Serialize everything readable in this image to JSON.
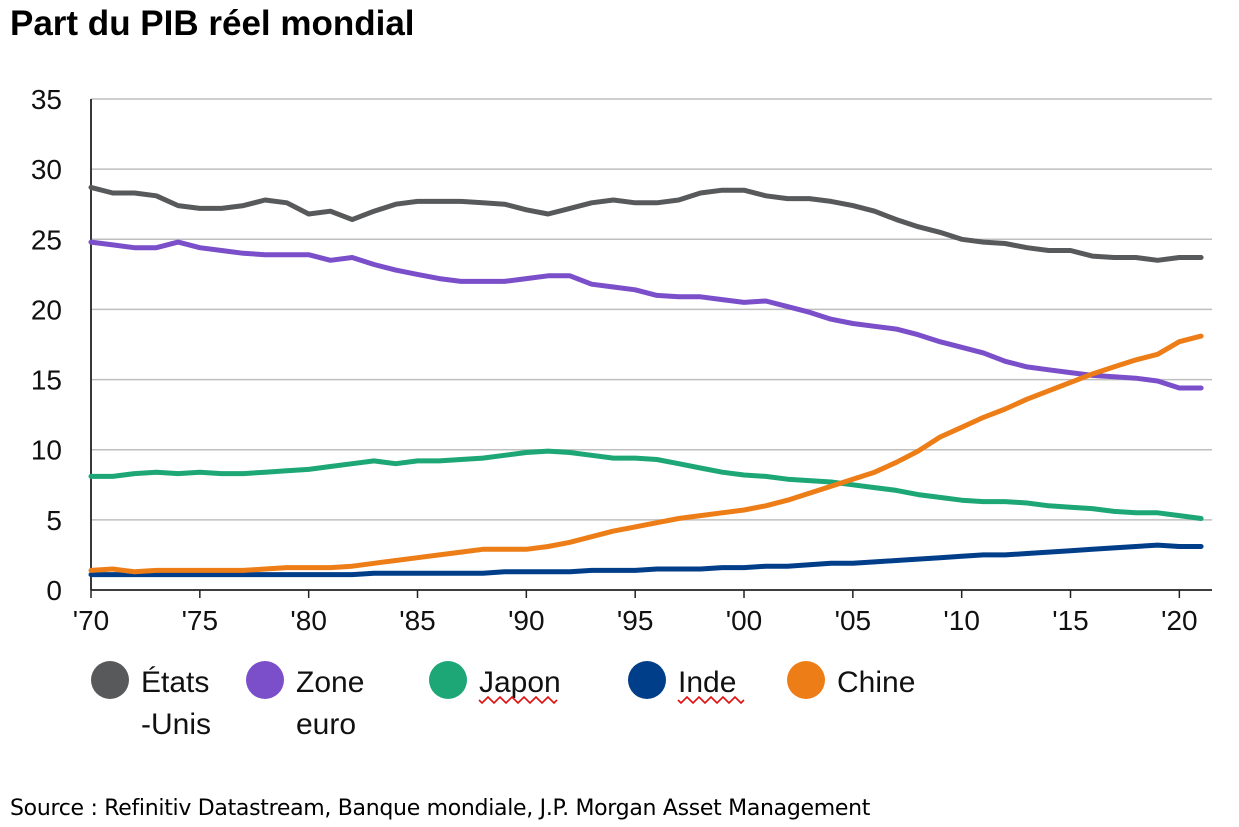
{
  "chart_data": {
    "type": "line",
    "title": "Part du PIB réel mondial",
    "source": "Source : Refinitiv Datastream, Banque mondiale, J.P. Morgan Asset Management",
    "xlabel": "",
    "ylabel": "",
    "xlim": [
      1970,
      2021.5
    ],
    "ylim": [
      0,
      35
    ],
    "y_ticks": [
      "0",
      "5",
      "10",
      "15",
      "20",
      "25",
      "30",
      "35"
    ],
    "x_ticks": [
      {
        "year": 1970,
        "label": "'70"
      },
      {
        "year": 1975,
        "label": "'75"
      },
      {
        "year": 1980,
        "label": "'80"
      },
      {
        "year": 1985,
        "label": "'85"
      },
      {
        "year": 1990,
        "label": "'90"
      },
      {
        "year": 1995,
        "label": "'95"
      },
      {
        "year": 2000,
        "label": "'00"
      },
      {
        "year": 2005,
        "label": "'05"
      },
      {
        "year": 2010,
        "label": "'10"
      },
      {
        "year": 2015,
        "label": "'15"
      },
      {
        "year": 2020,
        "label": "'20"
      }
    ],
    "grid": true,
    "legend_position": "bottom",
    "x": [
      1970,
      1971,
      1972,
      1973,
      1974,
      1975,
      1976,
      1977,
      1978,
      1979,
      1980,
      1981,
      1982,
      1983,
      1984,
      1985,
      1986,
      1987,
      1988,
      1989,
      1990,
      1991,
      1992,
      1993,
      1994,
      1995,
      1996,
      1997,
      1998,
      1999,
      2000,
      2001,
      2002,
      2003,
      2004,
      2005,
      2006,
      2007,
      2008,
      2009,
      2010,
      2011,
      2012,
      2013,
      2014,
      2015,
      2016,
      2017,
      2018,
      2019,
      2020,
      2021
    ],
    "series": [
      {
        "name": "États-Unis",
        "legend_lines": [
          "États",
          "-Unis"
        ],
        "color": "#58595b",
        "values": [
          28.7,
          28.3,
          28.3,
          28.1,
          27.4,
          27.2,
          27.2,
          27.4,
          27.8,
          27.6,
          26.8,
          27.0,
          26.4,
          27.0,
          27.5,
          27.7,
          27.7,
          27.7,
          27.6,
          27.5,
          27.1,
          26.8,
          27.2,
          27.6,
          27.8,
          27.6,
          27.6,
          27.8,
          28.3,
          28.5,
          28.5,
          28.1,
          27.9,
          27.9,
          27.7,
          27.4,
          27.0,
          26.4,
          25.9,
          25.5,
          25.0,
          24.8,
          24.7,
          24.4,
          24.2,
          24.2,
          23.8,
          23.7,
          23.7,
          23.5,
          23.7,
          23.7
        ]
      },
      {
        "name": "Zone euro",
        "legend_lines": [
          "Zone",
          "euro"
        ],
        "color": "#7a4fc9",
        "values": [
          24.8,
          24.6,
          24.4,
          24.4,
          24.8,
          24.4,
          24.2,
          24.0,
          23.9,
          23.9,
          23.9,
          23.5,
          23.7,
          23.2,
          22.8,
          22.5,
          22.2,
          22.0,
          22.0,
          22.0,
          22.2,
          22.4,
          22.4,
          21.8,
          21.6,
          21.4,
          21.0,
          20.9,
          20.9,
          20.7,
          20.5,
          20.6,
          20.2,
          19.8,
          19.3,
          19.0,
          18.8,
          18.6,
          18.2,
          17.7,
          17.3,
          16.9,
          16.3,
          15.9,
          15.7,
          15.5,
          15.3,
          15.2,
          15.1,
          14.9,
          14.4,
          14.4
        ]
      },
      {
        "name": "Japon",
        "legend_lines": [
          "Japon"
        ],
        "color": "#1da676",
        "squiggle": true,
        "values": [
          8.1,
          8.1,
          8.3,
          8.4,
          8.3,
          8.4,
          8.3,
          8.3,
          8.4,
          8.5,
          8.6,
          8.8,
          9.0,
          9.2,
          9.0,
          9.2,
          9.2,
          9.3,
          9.4,
          9.6,
          9.8,
          9.9,
          9.8,
          9.6,
          9.4,
          9.4,
          9.3,
          9.0,
          8.7,
          8.4,
          8.2,
          8.1,
          7.9,
          7.8,
          7.7,
          7.5,
          7.3,
          7.1,
          6.8,
          6.6,
          6.4,
          6.3,
          6.3,
          6.2,
          6.0,
          5.9,
          5.8,
          5.6,
          5.5,
          5.5,
          5.3,
          5.1
        ]
      },
      {
        "name": "Inde",
        "legend_lines": [
          "Inde"
        ],
        "color": "#003e8a",
        "squiggle": true,
        "values": [
          1.1,
          1.1,
          1.1,
          1.1,
          1.1,
          1.1,
          1.1,
          1.1,
          1.1,
          1.1,
          1.1,
          1.1,
          1.1,
          1.2,
          1.2,
          1.2,
          1.2,
          1.2,
          1.2,
          1.3,
          1.3,
          1.3,
          1.3,
          1.4,
          1.4,
          1.4,
          1.5,
          1.5,
          1.5,
          1.6,
          1.6,
          1.7,
          1.7,
          1.8,
          1.9,
          1.9,
          2.0,
          2.1,
          2.2,
          2.3,
          2.4,
          2.5,
          2.5,
          2.6,
          2.7,
          2.8,
          2.9,
          3.0,
          3.1,
          3.2,
          3.1,
          3.1
        ]
      },
      {
        "name": "Chine",
        "legend_lines": [
          "Chine"
        ],
        "color": "#ed7d17",
        "values": [
          1.4,
          1.5,
          1.3,
          1.4,
          1.4,
          1.4,
          1.4,
          1.4,
          1.5,
          1.6,
          1.6,
          1.6,
          1.7,
          1.9,
          2.1,
          2.3,
          2.5,
          2.7,
          2.9,
          2.9,
          2.9,
          3.1,
          3.4,
          3.8,
          4.2,
          4.5,
          4.8,
          5.1,
          5.3,
          5.5,
          5.7,
          6.0,
          6.4,
          6.9,
          7.4,
          7.9,
          8.4,
          9.1,
          9.9,
          10.9,
          11.6,
          12.3,
          12.9,
          13.6,
          14.2,
          14.8,
          15.4,
          15.9,
          16.4,
          16.8,
          17.7,
          18.1
        ]
      }
    ]
  }
}
